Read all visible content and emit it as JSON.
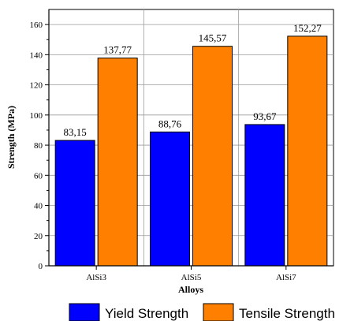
{
  "chart_data": {
    "type": "bar",
    "xlabel": "Alloys",
    "ylabel": "Strength (MPa)",
    "categories": [
      "AlSi3",
      "AlSi5",
      "AlSi7"
    ],
    "ylim": [
      0,
      170
    ],
    "yticks": [
      0,
      20,
      40,
      60,
      80,
      100,
      120,
      140,
      160
    ],
    "grid": true,
    "legend_position": "bottom",
    "series": [
      {
        "name": "Yield Strength",
        "color": "#0000ff",
        "values": [
          83.15,
          88.76,
          93.67
        ],
        "labels": [
          "83,15",
          "88,76",
          "93,67"
        ]
      },
      {
        "name": "Tensile Strength",
        "color": "#ff8000",
        "values": [
          137.77,
          145.57,
          152.27
        ],
        "labels": [
          "137,77",
          "145,57",
          "152,27"
        ]
      }
    ]
  }
}
